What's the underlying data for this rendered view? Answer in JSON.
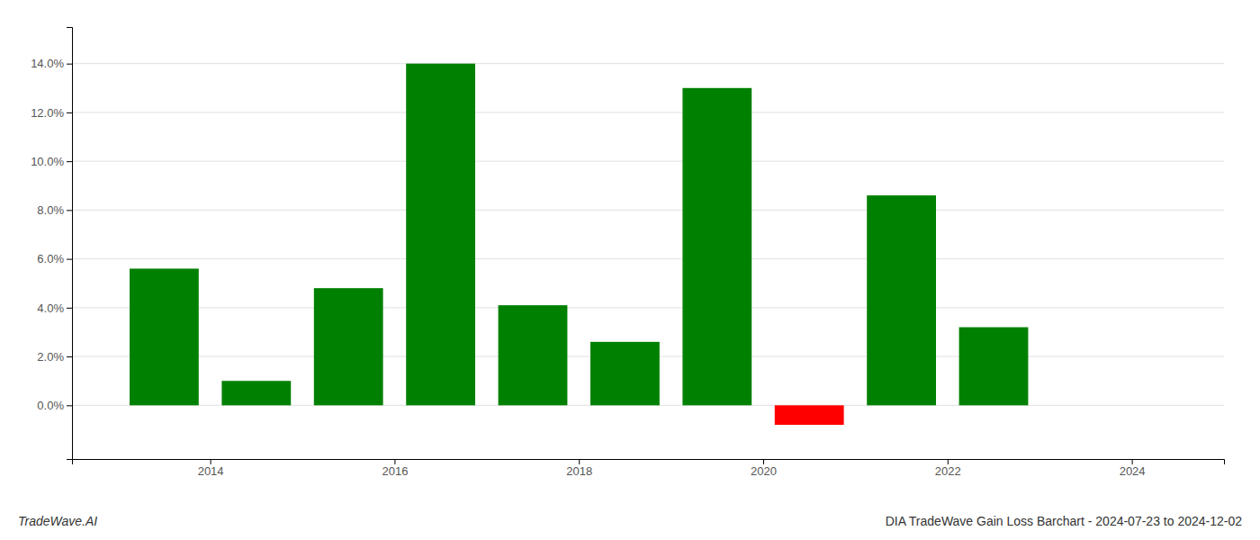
{
  "chart_data": {
    "type": "bar",
    "title": "DIA TradeWave Gain Loss Barchart - 2024-07-23 to 2024-12-02",
    "annotations": [
      "TradeWave.AI"
    ],
    "x": [
      2013.5,
      2014.5,
      2015.5,
      2016.5,
      2017.5,
      2018.5,
      2019.5,
      2020.5,
      2021.5,
      2022.5,
      2023.5
    ],
    "values": [
      0.056,
      0.01,
      0.048,
      0.14,
      0.041,
      0.026,
      0.13,
      -0.008,
      0.086,
      0.032,
      0.0
    ],
    "colors": [
      "#008000",
      "#008000",
      "#008000",
      "#008000",
      "#008000",
      "#008000",
      "#008000",
      "#ff0000",
      "#008000",
      "#008000",
      "#008000"
    ],
    "xlim": [
      2012.5,
      2025.0
    ],
    "ylim": [
      -0.022,
      0.155
    ],
    "xticks": [
      2014,
      2016,
      2018,
      2020,
      2022,
      2024
    ],
    "yticks": [
      {
        "value": 0.0,
        "label": "0.0%"
      },
      {
        "value": 0.02,
        "label": "2.0%"
      },
      {
        "value": 0.04,
        "label": "4.0%"
      },
      {
        "value": 0.06,
        "label": "6.0%"
      },
      {
        "value": 0.08,
        "label": "8.0%"
      },
      {
        "value": 0.1,
        "label": "10.0%"
      },
      {
        "value": 0.12,
        "label": "12.0%"
      },
      {
        "value": 0.14,
        "label": "14.0%"
      }
    ],
    "grid": true
  }
}
